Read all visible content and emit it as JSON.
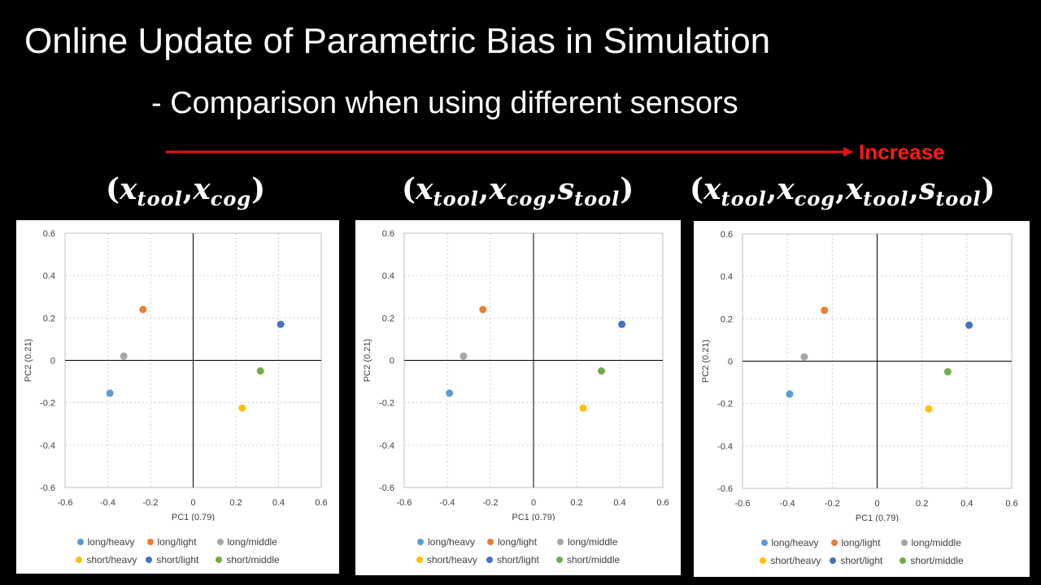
{
  "slide": {
    "title": "Online Update of Parametric Bias in Simulation",
    "subtitle": "- Comparison when using different sensors",
    "increase_label": "Increase",
    "arrow_color": "#e8101a"
  },
  "formulas": [
    {
      "terms": [
        {
          "v": "x",
          "s": "tool"
        },
        {
          "v": "x",
          "s": "cog"
        }
      ]
    },
    {
      "terms": [
        {
          "v": "x",
          "s": "tool"
        },
        {
          "v": "x",
          "s": "cog"
        },
        {
          "v": "s",
          "s": "tool"
        }
      ]
    },
    {
      "terms": [
        {
          "v": "x",
          "s": "tool"
        },
        {
          "v": "x",
          "s": "cog"
        },
        {
          "v": "x",
          "s": "tool"
        },
        {
          "v": "s",
          "s": "tool"
        }
      ]
    }
  ],
  "chart_data": [
    {
      "type": "scatter",
      "xlabel": "PC1 (0.79)",
      "ylabel": "PC2 (0.21)",
      "xlim": [
        -0.6,
        0.6
      ],
      "ylim": [
        -0.6,
        0.6
      ],
      "xticks": [
        "-0.6",
        "-0.4",
        "-0.2",
        "0",
        "0.2",
        "0.4",
        "0.6"
      ],
      "yticks": [
        "0.6",
        "0.4",
        "0.2",
        "0",
        "-0.2",
        "-0.4",
        "-0.6"
      ],
      "grid": true,
      "legend": "bottom",
      "series": [
        {
          "name": "long/heavy",
          "color": "#5b9bd5",
          "x": -0.39,
          "y": -0.155
        },
        {
          "name": "long/light",
          "color": "#ed7d31",
          "x": -0.235,
          "y": 0.24
        },
        {
          "name": "long/middle",
          "color": "#a5a5a5",
          "x": -0.325,
          "y": 0.02
        },
        {
          "name": "short/heavy",
          "color": "#ffc000",
          "x": 0.23,
          "y": -0.225
        },
        {
          "name": "short/light",
          "color": "#4472c4",
          "x": 0.41,
          "y": 0.17
        },
        {
          "name": "short/middle",
          "color": "#70ad47",
          "x": 0.315,
          "y": -0.05
        }
      ]
    },
    {
      "type": "scatter",
      "xlabel": "PC1 (0.79)",
      "ylabel": "PC2 (0.21)",
      "xlim": [
        -0.6,
        0.6
      ],
      "ylim": [
        -0.6,
        0.6
      ],
      "xticks": [
        "-0.6",
        "-0.4",
        "-0.2",
        "0",
        "0.2",
        "0.4",
        "0.6"
      ],
      "yticks": [
        "0.6",
        "0.4",
        "0.2",
        "0",
        "-0.2",
        "-0.4",
        "-0.6"
      ],
      "grid": true,
      "legend": "bottom",
      "series": [
        {
          "name": "long/heavy",
          "color": "#5b9bd5",
          "x": -0.39,
          "y": -0.155
        },
        {
          "name": "long/light",
          "color": "#ed7d31",
          "x": -0.235,
          "y": 0.24
        },
        {
          "name": "long/middle",
          "color": "#a5a5a5",
          "x": -0.325,
          "y": 0.02
        },
        {
          "name": "short/heavy",
          "color": "#ffc000",
          "x": 0.23,
          "y": -0.225
        },
        {
          "name": "short/light",
          "color": "#4472c4",
          "x": 0.41,
          "y": 0.17
        },
        {
          "name": "short/middle",
          "color": "#70ad47",
          "x": 0.315,
          "y": -0.05
        }
      ]
    },
    {
      "type": "scatter",
      "xlabel": "PC1 (0.79)",
      "ylabel": "PC2 (0.21)",
      "xlim": [
        -0.6,
        0.6
      ],
      "ylim": [
        -0.6,
        0.6
      ],
      "xticks": [
        "-0.6",
        "-0.4",
        "-0.2",
        "0",
        "0.2",
        "0.4",
        "0.6"
      ],
      "yticks": [
        "0.6",
        "0.4",
        "0.2",
        "0",
        "-0.2",
        "-0.4",
        "-0.6"
      ],
      "grid": true,
      "legend": "bottom",
      "series": [
        {
          "name": "long/heavy",
          "color": "#5b9bd5",
          "x": -0.39,
          "y": -0.155
        },
        {
          "name": "long/light",
          "color": "#ed7d31",
          "x": -0.235,
          "y": 0.24
        },
        {
          "name": "long/middle",
          "color": "#a5a5a5",
          "x": -0.325,
          "y": 0.02
        },
        {
          "name": "short/heavy",
          "color": "#ffc000",
          "x": 0.23,
          "y": -0.225
        },
        {
          "name": "short/light",
          "color": "#4472c4",
          "x": 0.41,
          "y": 0.17
        },
        {
          "name": "short/middle",
          "color": "#70ad47",
          "x": 0.315,
          "y": -0.05
        }
      ]
    }
  ]
}
